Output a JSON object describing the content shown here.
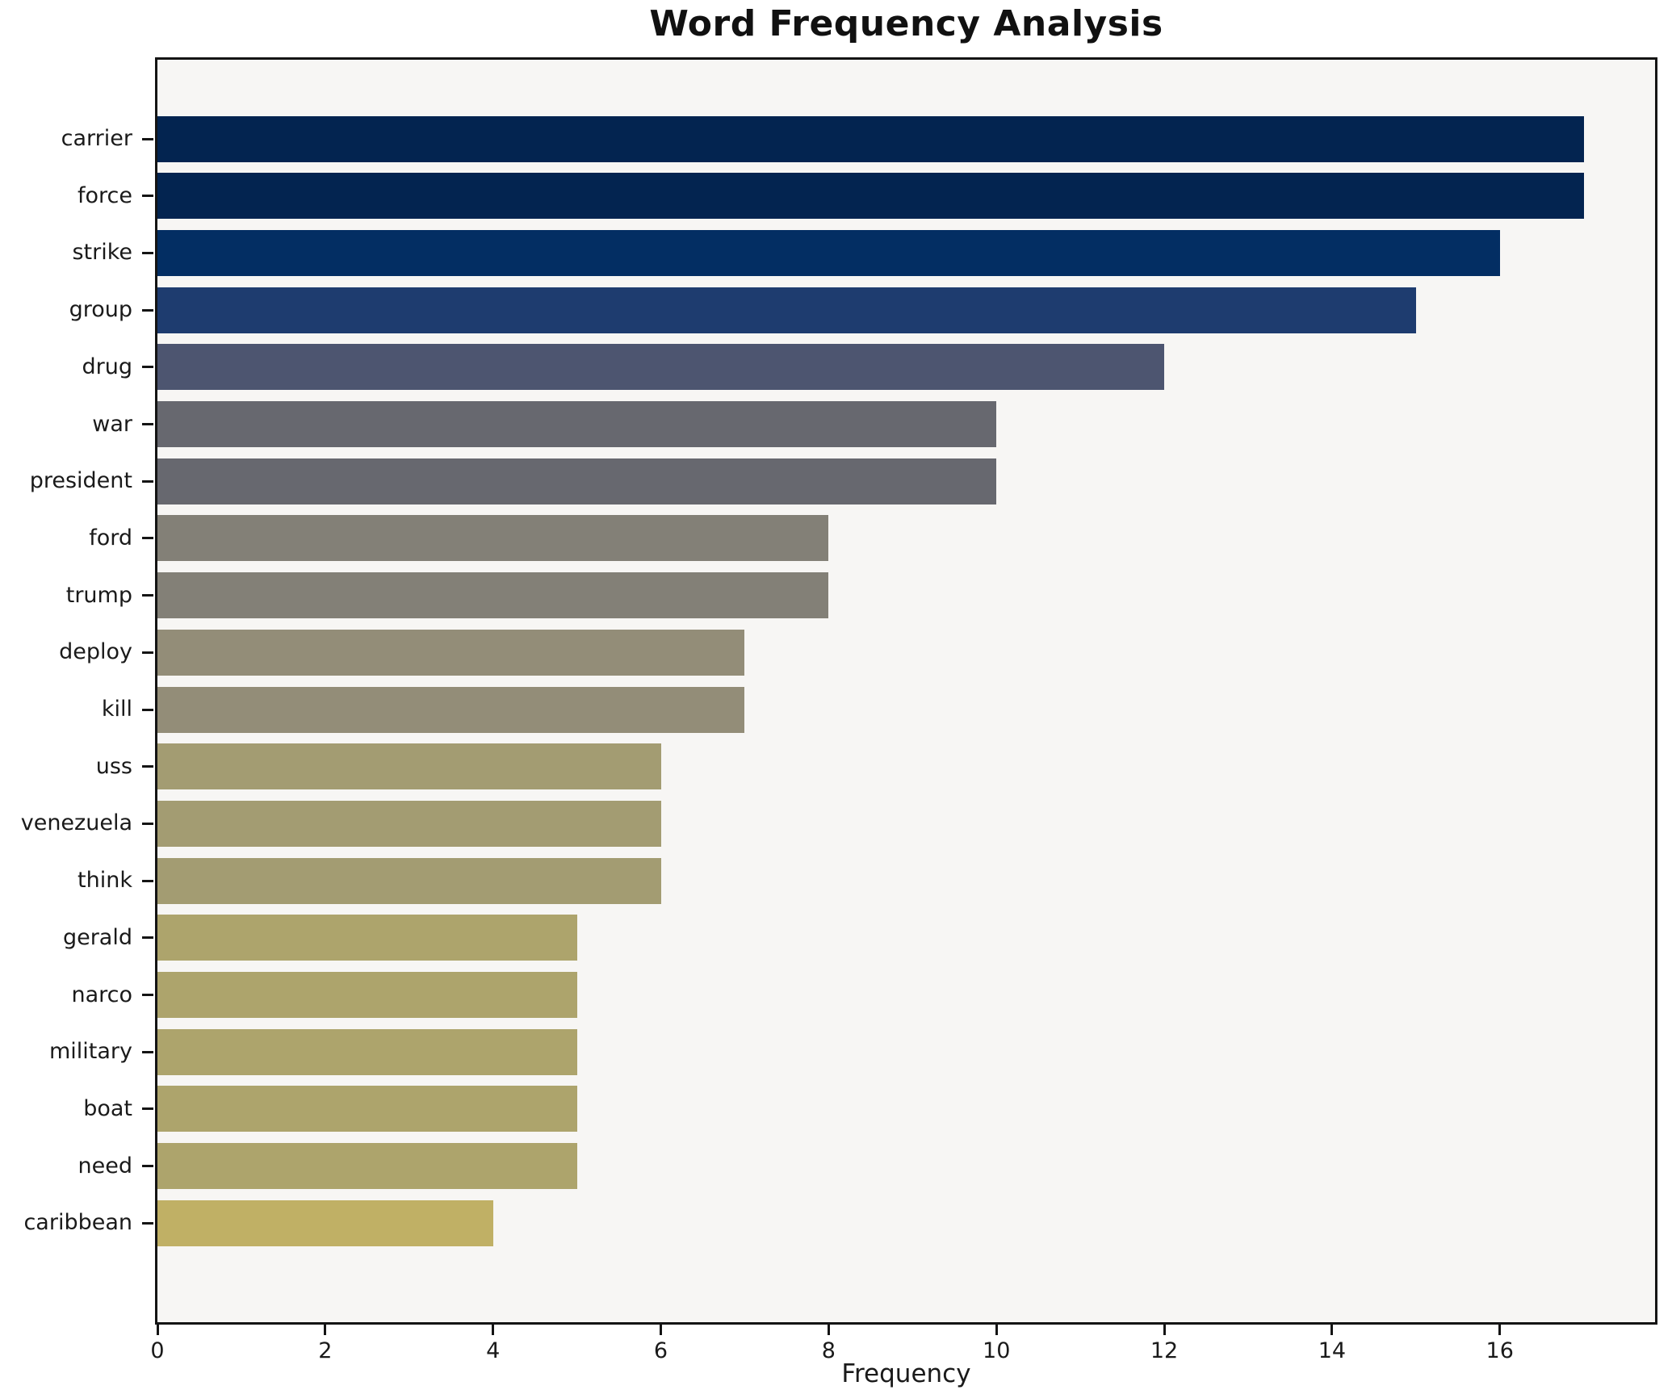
{
  "chart_data": {
    "type": "bar",
    "orientation": "horizontal",
    "title": "Word Frequency Analysis",
    "xlabel": "Frequency",
    "ylabel": "",
    "categories": [
      "carrier",
      "force",
      "strike",
      "group",
      "drug",
      "war",
      "president",
      "ford",
      "trump",
      "deploy",
      "kill",
      "uss",
      "venezuela",
      "think",
      "gerald",
      "narco",
      "military",
      "boat",
      "need",
      "caribbean"
    ],
    "values": [
      17,
      17,
      16,
      15,
      12,
      10,
      10,
      8,
      8,
      7,
      7,
      6,
      6,
      6,
      5,
      5,
      5,
      5,
      5,
      4
    ],
    "bar_colors": [
      "#032450",
      "#032450",
      "#032e63",
      "#1e3c6f",
      "#4d5570",
      "#67686f",
      "#67686f",
      "#838077",
      "#838077",
      "#938d78",
      "#938d78",
      "#a39c72",
      "#a39c72",
      "#a39c72",
      "#ada46c",
      "#ada46c",
      "#ada46c",
      "#ada46c",
      "#ada46c",
      "#c0b065"
    ],
    "xticks": [
      0,
      2,
      4,
      6,
      8,
      10,
      12,
      14,
      16
    ],
    "xlim": [
      0,
      17.85
    ],
    "grid": false,
    "legend": null,
    "colormap": "cividis",
    "plot_bg": "#f7f6f4",
    "figure_bg": "#ffffff",
    "spine_color": "#141414"
  }
}
